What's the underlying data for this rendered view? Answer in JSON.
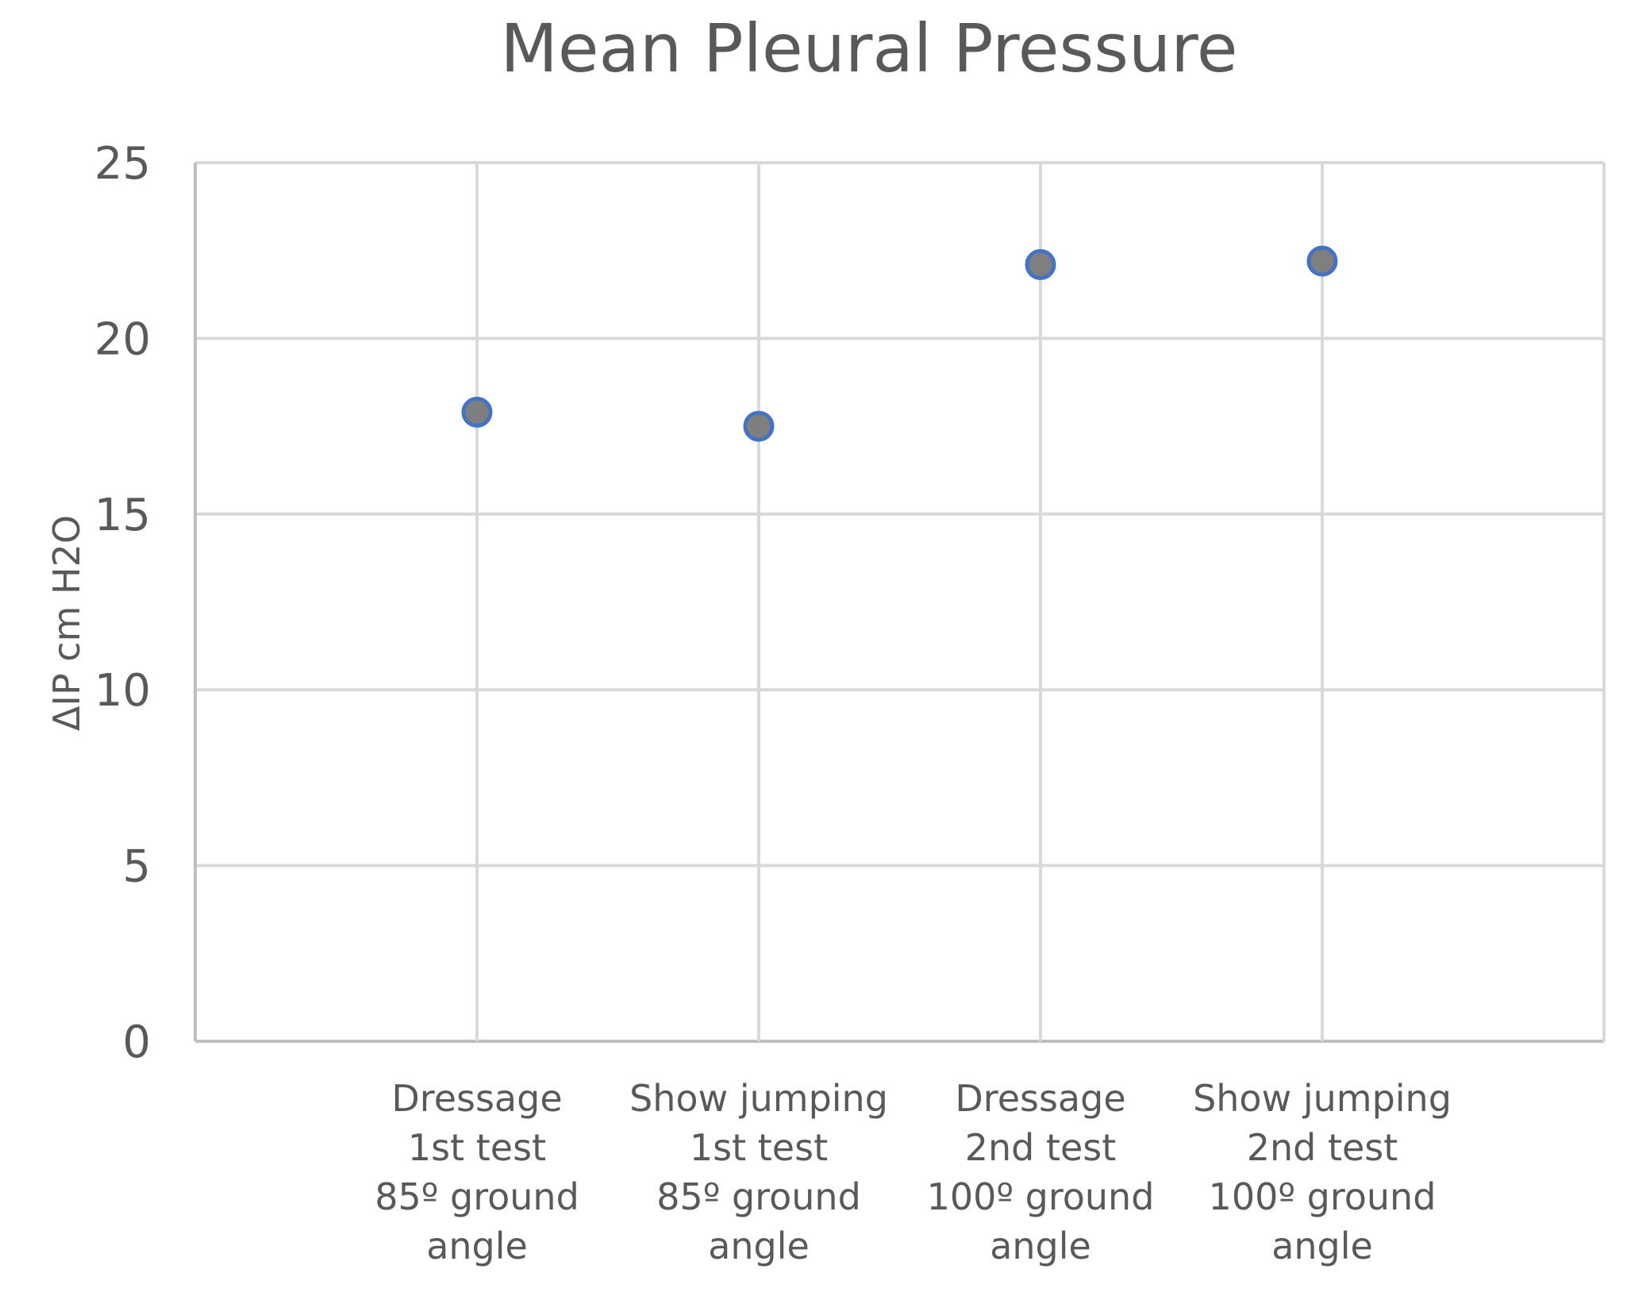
{
  "chart_data": {
    "type": "scatter",
    "title": "Mean Pleural Pressure",
    "xlabel": "",
    "ylabel": "ΔIP cm H2O",
    "categories": [
      [
        "Dressage",
        "1st test",
        "85º ground",
        "angle"
      ],
      [
        "Show jumping",
        "1st test",
        "85º ground",
        "angle"
      ],
      [
        "Dressage",
        "2nd test",
        "100º ground",
        "angle"
      ],
      [
        "Show jumping",
        "2nd test",
        "100º ground",
        "angle"
      ]
    ],
    "series": [
      {
        "name": "Mean Pleural Pressure",
        "values": [
          17.9,
          17.5,
          22.1,
          22.2
        ]
      }
    ],
    "ylim": [
      0,
      25
    ],
    "yticks": [
      "0",
      "5",
      "10",
      "15",
      "20",
      "25"
    ],
    "grid": true,
    "colors": {
      "marker_fill": "#7f7f7f",
      "marker_stroke": "#4472c4",
      "grid": "#d9d9d9",
      "axis": "#bfbfbf",
      "text": "#595959"
    }
  }
}
